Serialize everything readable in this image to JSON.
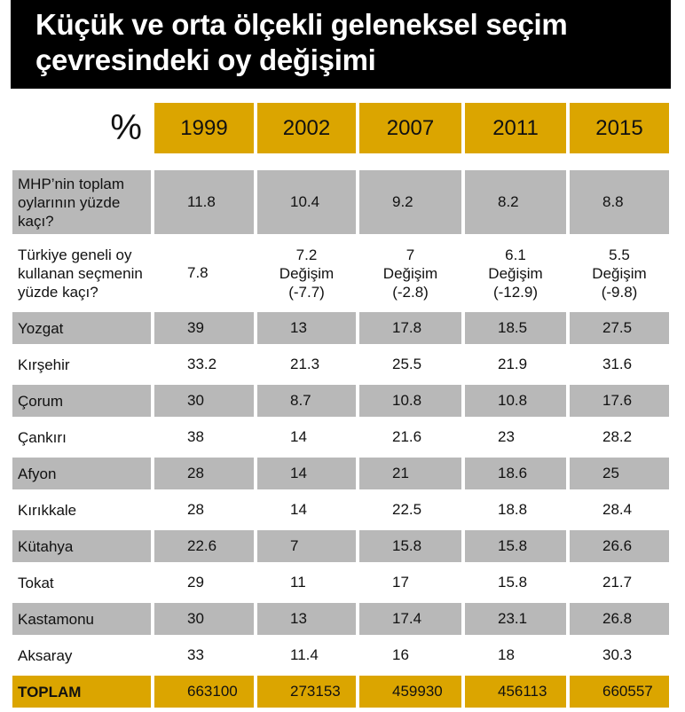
{
  "title": [
    "Küçük ve orta ölçekli geleneksel seçim",
    "çevresindeki oy değişimi"
  ],
  "colors": {
    "header_bg": "#000000",
    "accent_gold": "#dba500",
    "row_gray": "#b8b8b8"
  },
  "chart_data": {
    "type": "table",
    "corner_label": "%",
    "columns": [
      "1999",
      "2002",
      "2007",
      "2011",
      "2015"
    ],
    "summary_rows": [
      {
        "label": "MHP’nin toplam oylarının yüzde kaçı?",
        "values": [
          "11.8",
          "10.4",
          "9.2",
          "8.2",
          "8.8"
        ]
      },
      {
        "label": "Türkiye geneli oy kullanan seçmenin yüzde kaçı?",
        "values": [
          "7.8",
          "7.2",
          "7",
          "6.1",
          "5.5"
        ],
        "change_label": "Değişim",
        "changes": [
          "",
          "(-7.7)",
          "(-2.8)",
          "(-12.9)",
          "(-9.8)"
        ]
      }
    ],
    "rows": [
      {
        "label": "Yozgat",
        "values": [
          "39",
          "13",
          "17.8",
          "18.5",
          "27.5"
        ]
      },
      {
        "label": "Kırşehir",
        "values": [
          "33.2",
          "21.3",
          "25.5",
          "21.9",
          "31.6"
        ]
      },
      {
        "label": "Çorum",
        "values": [
          "30",
          "8.7",
          "10.8",
          "10.8",
          "17.6"
        ]
      },
      {
        "label": "Çankırı",
        "values": [
          "38",
          "14",
          "21.6",
          "23",
          "28.2"
        ]
      },
      {
        "label": "Afyon",
        "values": [
          "28",
          "14",
          "21",
          "18.6",
          "25"
        ]
      },
      {
        "label": "Kırıkkale",
        "values": [
          "28",
          "14",
          "22.5",
          "18.8",
          "28.4"
        ]
      },
      {
        "label": "Kütahya",
        "values": [
          "22.6",
          "7",
          "15.8",
          "15.8",
          "26.6"
        ]
      },
      {
        "label": "Tokat",
        "values": [
          "29",
          "11",
          "17",
          "15.8",
          "21.7"
        ]
      },
      {
        "label": "Kastamonu",
        "values": [
          "30",
          "13",
          "17.4",
          "23.1",
          "26.8"
        ]
      },
      {
        "label": "Aksaray",
        "values": [
          "33",
          "11.4",
          "16",
          "18",
          "30.3"
        ]
      }
    ],
    "total": {
      "label": "TOPLAM",
      "values": [
        "663100",
        "273153",
        "459930",
        "456113",
        "660557"
      ]
    }
  }
}
